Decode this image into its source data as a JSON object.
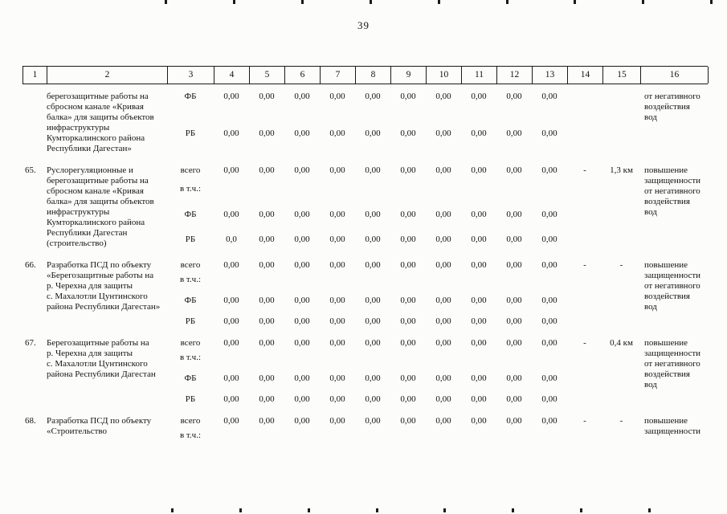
{
  "page": {
    "number": "39"
  },
  "table": {
    "header_cols": [
      "1",
      "2",
      "3",
      "4",
      "5",
      "6",
      "7",
      "8",
      "9",
      "10",
      "11",
      "12",
      "13",
      "14",
      "15",
      "16"
    ],
    "rows": [
      {
        "num": "",
        "desc": "берегозащитные работы на\nсбросном канале «Кривая\nбалка» для защиты объектов\nинфраструктуры\nКумторкалинского района\nРеспублики Дагестан»",
        "budget_lines": [
          {
            "label": "ФБ",
            "values": [
              "0,00",
              "0,00",
              "0,00",
              "0,00",
              "0,00",
              "0,00",
              "0,00",
              "0,00",
              "0,00",
              "0,00"
            ]
          },
          {
            "label": "РБ",
            "values": [
              "0,00",
              "0,00",
              "0,00",
              "0,00",
              "0,00",
              "0,00",
              "0,00",
              "0,00",
              "0,00",
              "0,00"
            ]
          }
        ],
        "col14": "",
        "col15": "",
        "result": "от негативного\nвоздействия\nвод"
      },
      {
        "num": "65.",
        "desc": "Руслорегуляционные и\nберегозащитные работы на\nсбросном канале «Кривая\nбалка» для защиты объектов\nинфраструктуры\nКумторкалинского района\nРеспублики Дагестан\n(строительство)",
        "budget_lines": [
          {
            "label": "всего",
            "values": [
              "0,00",
              "0,00",
              "0,00",
              "0,00",
              "0,00",
              "0,00",
              "0,00",
              "0,00",
              "0,00",
              "0,00"
            ]
          },
          {
            "label": "в т.ч.:",
            "values": []
          },
          {
            "label": "ФБ",
            "values": [
              "0,00",
              "0,00",
              "0,00",
              "0,00",
              "0,00",
              "0,00",
              "0,00",
              "0,00",
              "0,00",
              "0,00"
            ]
          },
          {
            "label": "РБ",
            "values": [
              "0,0",
              "0,00",
              "0,00",
              "0,00",
              "0,00",
              "0,00",
              "0,00",
              "0,00",
              "0,00",
              "0,00"
            ]
          }
        ],
        "col14": "-",
        "col15": "1,3 км",
        "result": "повышение\nзащищенности\nот негативного\nвоздействия\nвод"
      },
      {
        "num": "66.",
        "desc": "Разработка ПСД по объекту\n«Берегозащитные работы на\nр. Черехна для защиты\nс. Махалотли Цунтинского\nрайона Республики Дагестан»",
        "budget_lines": [
          {
            "label": "всего",
            "values": [
              "0,00",
              "0,00",
              "0,00",
              "0,00",
              "0,00",
              "0,00",
              "0,00",
              "0,00",
              "0,00",
              "0,00"
            ]
          },
          {
            "label": "в т.ч.:",
            "values": []
          },
          {
            "label": "ФБ",
            "values": [
              "0,00",
              "0,00",
              "0,00",
              "0,00",
              "0,00",
              "0,00",
              "0,00",
              "0,00",
              "0,00",
              "0,00"
            ]
          },
          {
            "label": "РБ",
            "values": [
              "0,00",
              "0,00",
              "0,00",
              "0,00",
              "0,00",
              "0,00",
              "0,00",
              "0,00",
              "0,00",
              "0,00"
            ]
          }
        ],
        "col14": "-",
        "col15": "-",
        "result": "повышение\nзащищенности\nот негативного\nвоздействия\nвод"
      },
      {
        "num": "67.",
        "desc": "Берегозащитные работы на\nр. Черехна для защиты\nс. Махалотли Цунтинского\nрайона Республики Дагестан",
        "budget_lines": [
          {
            "label": "всего",
            "values": [
              "0,00",
              "0,00",
              "0,00",
              "0,00",
              "0,00",
              "0,00",
              "0,00",
              "0,00",
              "0,00",
              "0,00"
            ]
          },
          {
            "label": "в т.ч.:",
            "values": []
          },
          {
            "label": "ФБ",
            "values": [
              "0,00",
              "0,00",
              "0,00",
              "0,00",
              "0,00",
              "0,00",
              "0,00",
              "0,00",
              "0,00",
              "0,00"
            ]
          },
          {
            "label": "РБ",
            "values": [
              "0,00",
              "0,00",
              "0,00",
              "0,00",
              "0,00",
              "0,00",
              "0,00",
              "0,00",
              "0,00",
              "0,00"
            ]
          }
        ],
        "col14": "-",
        "col15": "0,4 км",
        "result": "повышение\nзащищенности\nот негативного\nвоздействия\nвод"
      },
      {
        "num": "68.",
        "desc": "Разработка ПСД по объекту\n«Строительство",
        "budget_lines": [
          {
            "label": "всего",
            "values": [
              "0,00",
              "0,00",
              "0,00",
              "0,00",
              "0,00",
              "0,00",
              "0,00",
              "0,00",
              "0,00",
              "0,00"
            ]
          },
          {
            "label": "в т.ч.:",
            "values": []
          }
        ],
        "col14": "-",
        "col15": "-",
        "result": "повышение\nзащищенности"
      }
    ]
  }
}
